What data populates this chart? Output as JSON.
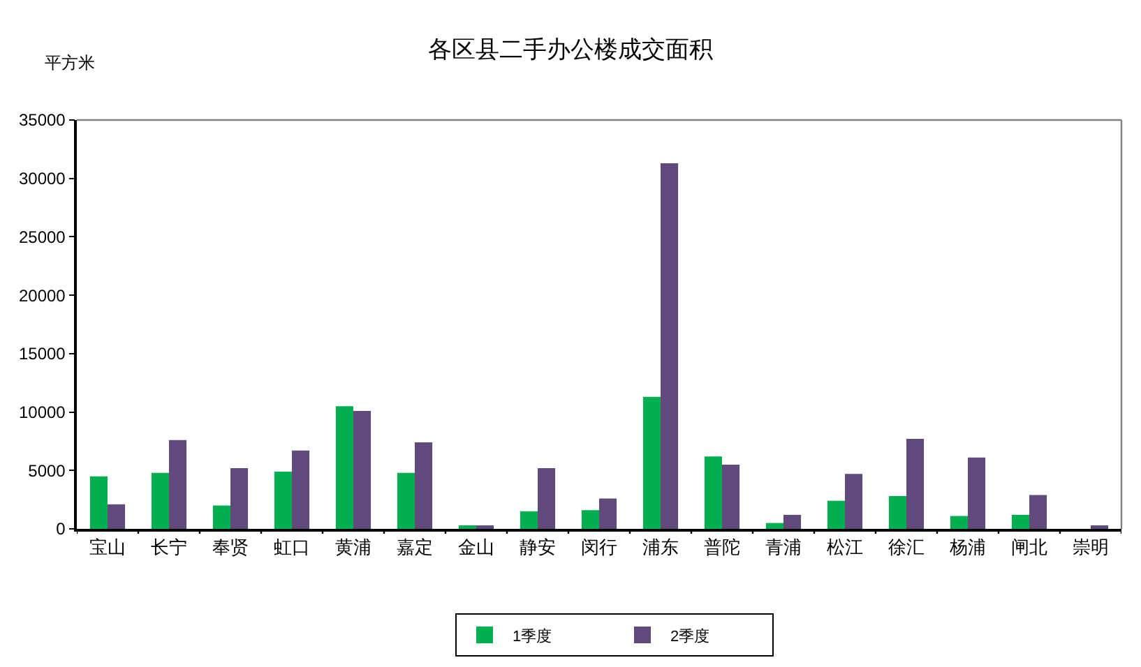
{
  "chart_data": {
    "type": "bar",
    "title": "各区县二手办公楼成交面积",
    "ylabel": "平方米",
    "categories": [
      "宝山",
      "长宁",
      "奉贤",
      "虹口",
      "黄浦",
      "嘉定",
      "金山",
      "静安",
      "闵行",
      "浦东",
      "普陀",
      "青浦",
      "松江",
      "徐汇",
      "杨浦",
      "闸北",
      "崇明"
    ],
    "series": [
      {
        "name": "1季度",
        "color": "#00b050",
        "values": [
          4500,
          4800,
          2000,
          4900,
          10500,
          4800,
          300,
          1500,
          1600,
          11300,
          6200,
          500,
          2400,
          2800,
          1100,
          1200,
          null
        ]
      },
      {
        "name": "2季度",
        "color": "#604a7b",
        "values": [
          2100,
          7600,
          5200,
          6700,
          10100,
          7400,
          300,
          5200,
          2600,
          31300,
          5500,
          1200,
          4700,
          7700,
          6100,
          2900,
          300
        ]
      }
    ],
    "ylim": [
      0,
      35000
    ],
    "yticks": [
      0,
      5000,
      10000,
      15000,
      20000,
      25000,
      30000,
      35000
    ],
    "grid": false,
    "legend": "bottom"
  }
}
